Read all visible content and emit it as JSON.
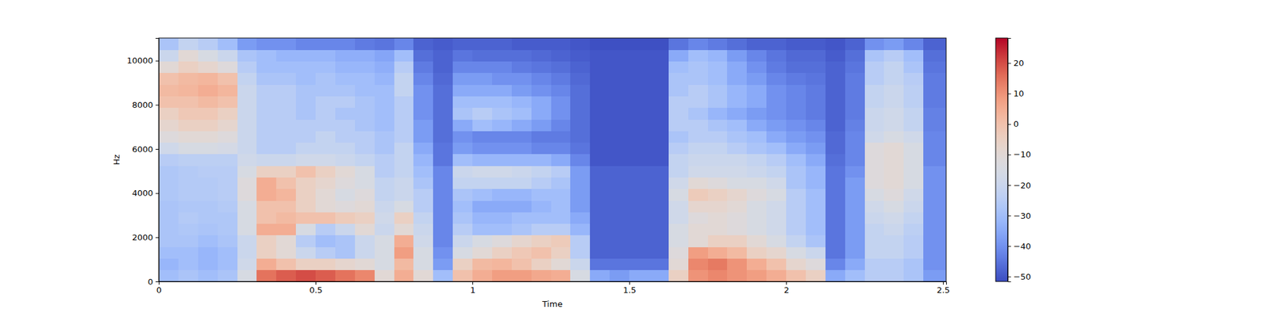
{
  "chart_data": {
    "type": "heatmap",
    "xlabel": "Time",
    "ylabel": "Hz",
    "xlim": [
      0,
      2.51
    ],
    "ylim": [
      0,
      11025
    ],
    "xticks": [
      0,
      0.5,
      1,
      1.5,
      2,
      2.5
    ],
    "yticks": [
      0,
      2000,
      4000,
      6000,
      8000,
      10000
    ],
    "x": [
      0,
      0.0625,
      0.125,
      0.1875,
      0.25,
      0.3125,
      0.375,
      0.4375,
      0.5,
      0.5625,
      0.625,
      0.6875,
      0.75,
      0.8125,
      0.875,
      0.9375,
      1,
      1.0625,
      1.125,
      1.1875,
      1.25,
      1.3125,
      1.375,
      1.4375,
      1.5,
      1.5625,
      1.625,
      1.6875,
      1.75,
      1.8125,
      1.875,
      1.9375,
      2,
      2.0625,
      2.125,
      2.1875,
      2.25,
      2.3125,
      2.375,
      2.4375
    ],
    "y": [
      0,
      525,
      1050,
      1575,
      2100,
      2625,
      3150,
      3675,
      4200,
      4725,
      5250,
      5775,
      6300,
      6825,
      7350,
      7875,
      8400,
      8925,
      9450,
      9975,
      10500
    ],
    "z": [
      [
        -30,
        -28,
        -30,
        -28,
        -15,
        15,
        18,
        20,
        18,
        15,
        12,
        -10,
        5,
        -10,
        -30,
        0,
        5,
        8,
        8,
        6,
        5,
        -15,
        -35,
        -38,
        -35,
        -35,
        -5,
        10,
        12,
        10,
        8,
        5,
        0,
        -5,
        -35,
        -30,
        -25,
        -25,
        -28,
        -38
      ],
      [
        -32,
        -30,
        -32,
        -30,
        -18,
        5,
        0,
        -5,
        -5,
        -8,
        -10,
        -15,
        2,
        -15,
        -38,
        -5,
        2,
        3,
        0,
        -5,
        -10,
        -20,
        -45,
        -45,
        -45,
        -45,
        -10,
        12,
        14,
        10,
        5,
        0,
        -8,
        -12,
        -42,
        -35,
        -25,
        -25,
        -28,
        -40
      ],
      [
        -30,
        -30,
        -32,
        -30,
        -20,
        -5,
        -10,
        -20,
        -25,
        -28,
        -20,
        -15,
        8,
        -15,
        -40,
        -15,
        -10,
        -5,
        -2,
        0,
        -5,
        -25,
        -48,
        -48,
        -48,
        -48,
        -12,
        8,
        5,
        2,
        -5,
        -8,
        -15,
        -20,
        -45,
        -38,
        -22,
        -22,
        -25,
        -40
      ],
      [
        -28,
        -28,
        -30,
        -28,
        -20,
        -5,
        -10,
        -25,
        -30,
        -28,
        -20,
        -15,
        5,
        -18,
        -42,
        -20,
        -15,
        -12,
        -8,
        -5,
        -3,
        -25,
        -48,
        -48,
        -48,
        -48,
        -15,
        -10,
        -5,
        -5,
        -10,
        -15,
        -22,
        -28,
        -45,
        -38,
        -22,
        -22,
        -25,
        -40
      ],
      [
        -28,
        -27,
        -28,
        -27,
        -15,
        5,
        5,
        -15,
        -25,
        -20,
        -10,
        -20,
        -10,
        -20,
        -42,
        -25,
        -30,
        -30,
        -28,
        -25,
        -25,
        -32,
        -48,
        -48,
        -48,
        -48,
        -15,
        -10,
        -10,
        -12,
        -15,
        -18,
        -25,
        -30,
        -45,
        -38,
        -22,
        -20,
        -24,
        -40
      ],
      [
        -28,
        -26,
        -27,
        -27,
        -15,
        0,
        2,
        0,
        0,
        -3,
        -5,
        -18,
        -5,
        -22,
        -42,
        -28,
        -32,
        -32,
        -30,
        -30,
        -30,
        -35,
        -48,
        -48,
        -48,
        -48,
        -18,
        -12,
        -10,
        -12,
        -15,
        -18,
        -25,
        -30,
        -45,
        -38,
        -20,
        -18,
        -22,
        -40
      ],
      [
        -28,
        -27,
        -27,
        -26,
        -15,
        0,
        0,
        -5,
        -10,
        -12,
        -10,
        -20,
        -15,
        -25,
        -42,
        -30,
        -35,
        -35,
        -35,
        -32,
        -30,
        -38,
        -48,
        -48,
        -48,
        -48,
        -18,
        -8,
        -8,
        -10,
        -15,
        -18,
        -25,
        -30,
        -45,
        -38,
        -18,
        -15,
        -20,
        -40
      ],
      [
        -27,
        -26,
        -26,
        -25,
        -12,
        5,
        3,
        -5,
        -10,
        -15,
        -12,
        -22,
        -20,
        -25,
        -42,
        -28,
        -30,
        -32,
        -32,
        -30,
        -30,
        -38,
        -48,
        -48,
        -48,
        -48,
        -15,
        -3,
        -5,
        -8,
        -12,
        -15,
        -25,
        -30,
        -45,
        -38,
        -15,
        -12,
        -18,
        -40
      ],
      [
        -27,
        -26,
        -26,
        -25,
        -12,
        5,
        0,
        -5,
        -8,
        -12,
        -15,
        -22,
        -20,
        -28,
        -42,
        -22,
        -22,
        -22,
        -22,
        -25,
        -28,
        -38,
        -48,
        -48,
        -48,
        -48,
        -18,
        -10,
        -12,
        -15,
        -15,
        -18,
        -28,
        -32,
        -45,
        -38,
        -12,
        -10,
        -15,
        -40
      ],
      [
        -27,
        -26,
        -25,
        -25,
        -15,
        -5,
        -5,
        0,
        -5,
        -10,
        -15,
        -25,
        -22,
        -30,
        -42,
        -20,
        -18,
        -18,
        -20,
        -22,
        -25,
        -38,
        -48,
        -48,
        -48,
        -48,
        -22,
        -18,
        -18,
        -18,
        -20,
        -22,
        -28,
        -32,
        -45,
        -40,
        -12,
        -10,
        -15,
        -40
      ],
      [
        -25,
        -24,
        -24,
        -24,
        -18,
        -20,
        -20,
        -18,
        -18,
        -20,
        -22,
        -25,
        -22,
        -32,
        -45,
        -30,
        -32,
        -32,
        -32,
        -32,
        -35,
        -42,
        -50,
        -50,
        -50,
        -50,
        -22,
        -20,
        -20,
        -20,
        -22,
        -25,
        -30,
        -35,
        -46,
        -42,
        -12,
        -10,
        -15,
        -42
      ],
      [
        -18,
        -15,
        -15,
        -16,
        -20,
        -25,
        -25,
        -22,
        -22,
        -22,
        -25,
        -28,
        -22,
        -35,
        -45,
        -38,
        -40,
        -40,
        -40,
        -42,
        -42,
        -45,
        -50,
        -50,
        -50,
        -50,
        -25,
        -22,
        -22,
        -25,
        -28,
        -30,
        -35,
        -38,
        -47,
        -42,
        -12,
        -10,
        -15,
        -42
      ],
      [
        -12,
        -10,
        -10,
        -12,
        -20,
        -25,
        -25,
        -25,
        -22,
        -25,
        -25,
        -28,
        -25,
        -38,
        -46,
        -40,
        -42,
        -42,
        -42,
        -44,
        -44,
        -46,
        -50,
        -50,
        -50,
        -50,
        -28,
        -25,
        -25,
        -28,
        -30,
        -35,
        -38,
        -40,
        -47,
        -42,
        -18,
        -15,
        -18,
        -42
      ],
      [
        -8,
        -5,
        -5,
        -8,
        -20,
        -25,
        -25,
        -25,
        -25,
        -25,
        -28,
        -30,
        -25,
        -38,
        -46,
        -35,
        -30,
        -32,
        -35,
        -38,
        -42,
        -46,
        -50,
        -50,
        -50,
        -50,
        -25,
        -25,
        -28,
        -30,
        -35,
        -38,
        -40,
        -42,
        -48,
        -43,
        -20,
        -18,
        -22,
        -43
      ],
      [
        -5,
        -2,
        -2,
        -5,
        -20,
        -25,
        -25,
        -28,
        -25,
        -28,
        -28,
        -30,
        -25,
        -40,
        -46,
        -28,
        -25,
        -28,
        -30,
        -35,
        -40,
        -46,
        -50,
        -50,
        -50,
        -50,
        -25,
        -28,
        -32,
        -35,
        -38,
        -40,
        -42,
        -44,
        -48,
        -44,
        -20,
        -18,
        -22,
        -43
      ],
      [
        0,
        0,
        2,
        0,
        -20,
        -25,
        -25,
        -28,
        -25,
        -25,
        -28,
        -30,
        -25,
        -40,
        -46,
        -30,
        -30,
        -30,
        -32,
        -35,
        -40,
        -46,
        -50,
        -50,
        -50,
        -50,
        -25,
        -25,
        -28,
        -32,
        -35,
        -40,
        -42,
        -44,
        -48,
        -44,
        -22,
        -20,
        -24,
        -44
      ],
      [
        2,
        3,
        5,
        3,
        -20,
        -25,
        -25,
        -28,
        -28,
        -28,
        -30,
        -30,
        -22,
        -40,
        -46,
        -35,
        -35,
        -35,
        -38,
        -40,
        -42,
        -46,
        -50,
        -50,
        -50,
        -50,
        -28,
        -25,
        -28,
        -32,
        -35,
        -40,
        -42,
        -44,
        -48,
        -44,
        -22,
        -20,
        -24,
        -44
      ],
      [
        0,
        2,
        3,
        0,
        -22,
        -28,
        -28,
        -30,
        -28,
        -30,
        -30,
        -32,
        -22,
        -42,
        -47,
        -38,
        -38,
        -40,
        -40,
        -42,
        -44,
        -47,
        -50,
        -50,
        -50,
        -50,
        -28,
        -28,
        -30,
        -35,
        -38,
        -42,
        -44,
        -45,
        -48,
        -44,
        -25,
        -22,
        -25,
        -44
      ],
      [
        -10,
        -5,
        -8,
        -12,
        -25,
        -30,
        -30,
        -30,
        -30,
        -32,
        -32,
        -34,
        -25,
        -44,
        -48,
        -42,
        -42,
        -42,
        -44,
        -45,
        -46,
        -48,
        -50,
        -50,
        -50,
        -50,
        -30,
        -28,
        -30,
        -35,
        -40,
        -44,
        -46,
        -46,
        -48,
        -45,
        -25,
        -22,
        -28,
        -45
      ],
      [
        -20,
        -10,
        -15,
        -20,
        -28,
        -30,
        -32,
        -32,
        -32,
        -34,
        -34,
        -36,
        -30,
        -46,
        -48,
        -45,
        -46,
        -46,
        -46,
        -47,
        -48,
        -49,
        -50,
        -50,
        -50,
        -50,
        -35,
        -30,
        -32,
        -38,
        -42,
        -45,
        -47,
        -47,
        -49,
        -46,
        -28,
        -25,
        -30,
        -46
      ],
      [
        -28,
        -22,
        -25,
        -30,
        -38,
        -40,
        -40,
        -42,
        -42,
        -42,
        -44,
        -45,
        -42,
        -48,
        -49,
        -48,
        -48,
        -48,
        -49,
        -49,
        -49,
        -50,
        -51,
        -51,
        -51,
        -51,
        -45,
        -42,
        -44,
        -46,
        -48,
        -48,
        -49,
        -49,
        -50,
        -48,
        -40,
        -38,
        -42,
        -48
      ]
    ],
    "zlim": [
      -51.6,
      28.2
    ],
    "zticks": [
      {
        "value": -50,
        "label": "−50"
      },
      {
        "value": -40,
        "label": "−40"
      },
      {
        "value": -30,
        "label": "−30"
      },
      {
        "value": -20,
        "label": "−20"
      },
      {
        "value": -10,
        "label": "−10"
      },
      0,
      10,
      20
    ]
  }
}
